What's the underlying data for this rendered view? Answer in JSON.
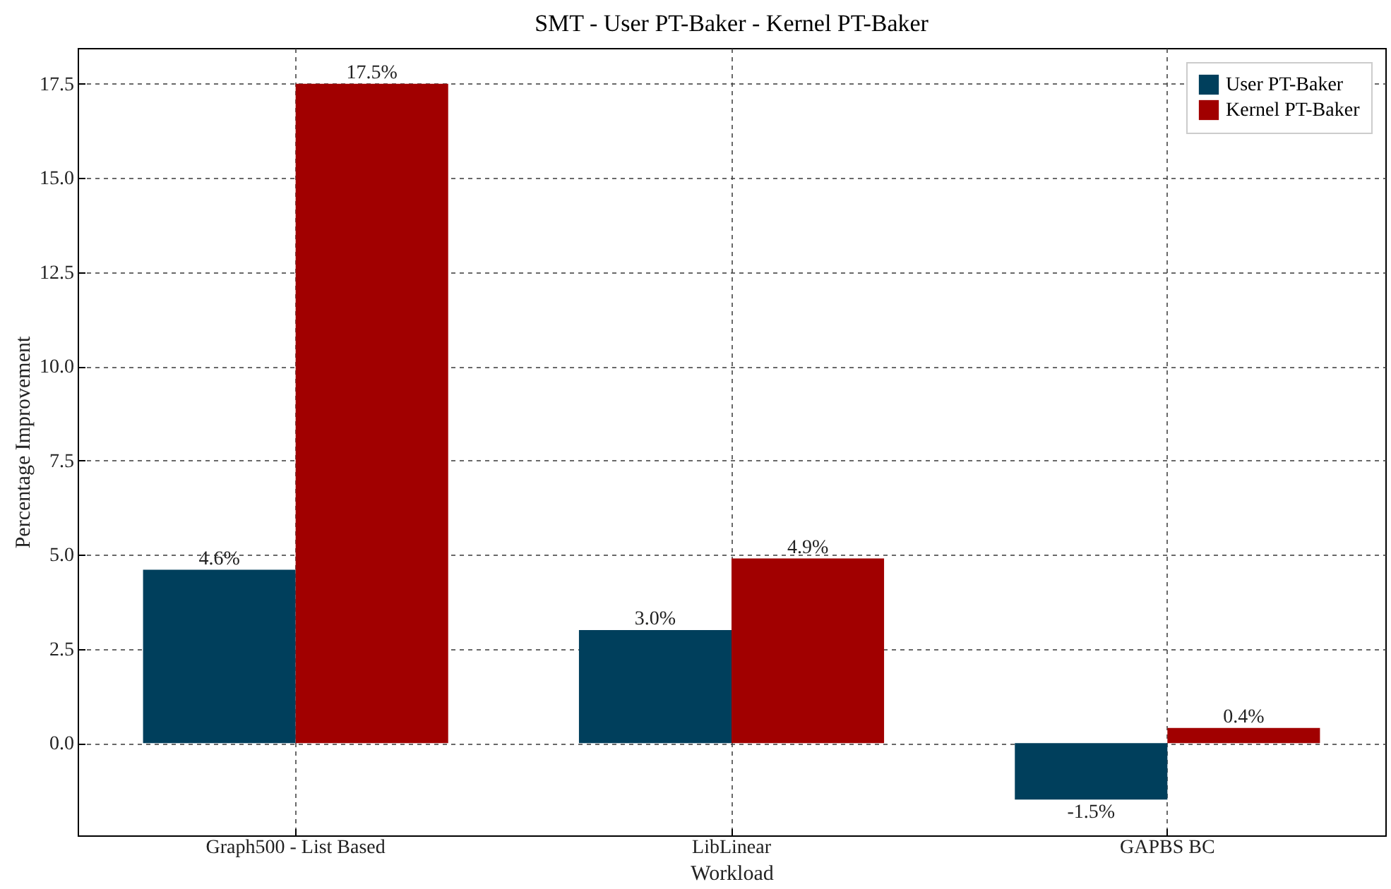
{
  "chart_data": {
    "type": "bar",
    "title": "SMT - User PT-Baker - Kernel PT-Baker",
    "xlabel": "Workload",
    "ylabel": "Percentage Improvement",
    "categories": [
      "Graph500 - List Based",
      "LibLinear",
      "GAPBS BC"
    ],
    "series": [
      {
        "name": "User PT-Baker",
        "color": "#003f5c",
        "values": [
          4.6,
          3.0,
          -1.5
        ],
        "value_labels": [
          "4.6%",
          "3.0%",
          "-1.5%"
        ]
      },
      {
        "name": "Kernel PT-Baker",
        "color": "#a10000",
        "values": [
          17.5,
          4.9,
          0.4
        ],
        "value_labels": [
          "17.5%",
          "4.9%",
          "0.4%"
        ]
      }
    ],
    "ylim": [
      -2.45,
      18.45
    ],
    "yticks": [
      {
        "value": 0,
        "label": "0.0"
      },
      {
        "value": 2.5,
        "label": "2.5"
      },
      {
        "value": 5,
        "label": "5.0"
      },
      {
        "value": 7.5,
        "label": "7.5"
      },
      {
        "value": 10,
        "label": "10.0"
      },
      {
        "value": 12.5,
        "label": "12.5"
      },
      {
        "value": 15,
        "label": "15.0"
      },
      {
        "value": 17.5,
        "label": "17.5"
      }
    ],
    "grid": true,
    "legend": "top right"
  }
}
